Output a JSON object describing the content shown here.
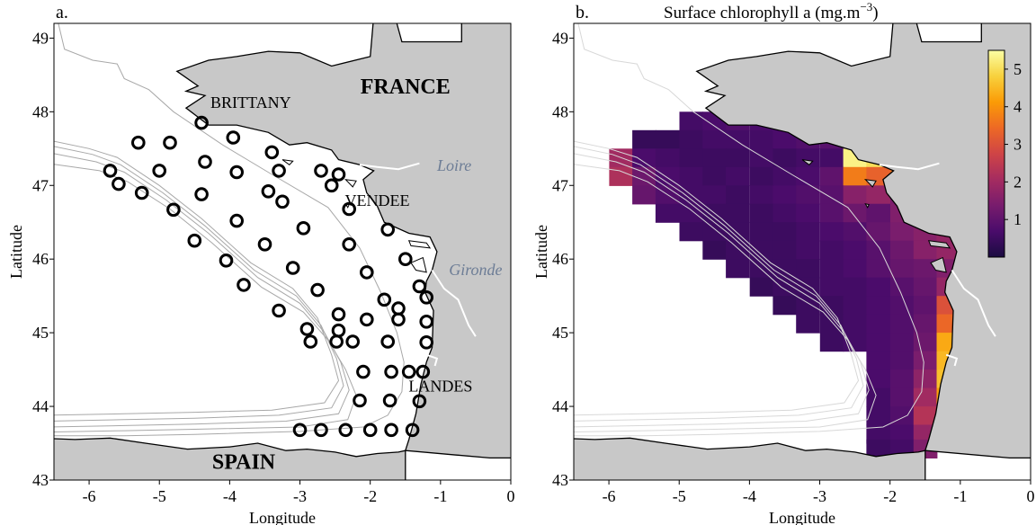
{
  "panels": [
    {
      "id": "a",
      "panel_label": "a.",
      "title": "",
      "xlabel": "Longitude",
      "ylabel": "Latitude",
      "xlim": [
        -6.5,
        0
      ],
      "ylim": [
        43,
        49.2
      ],
      "xticks": [
        "-6",
        "-5",
        "-4",
        "-3",
        "-2",
        "-1",
        "0"
      ],
      "yticks": [
        "43",
        "44",
        "45",
        "46",
        "47",
        "48",
        "49"
      ],
      "places": [
        {
          "text": "FRANCE",
          "lon": -1.5,
          "lat": 48.25,
          "kind": "country"
        },
        {
          "text": "BRITTANY",
          "lon": -3.7,
          "lat": 48.05,
          "kind": "region"
        },
        {
          "text": "VENDEE",
          "lon": -1.9,
          "lat": 46.72,
          "kind": "region"
        },
        {
          "text": "LANDES",
          "lon": -1.0,
          "lat": 44.2,
          "kind": "region"
        },
        {
          "text": "SPAIN",
          "lon": -3.8,
          "lat": 43.15,
          "kind": "country"
        },
        {
          "text": "Loire",
          "lon": -1.05,
          "lat": 47.2,
          "kind": "river"
        },
        {
          "text": "Gironde",
          "lon": -0.88,
          "lat": 45.78,
          "kind": "river"
        }
      ],
      "stations": [
        [
          -4.4,
          47.85
        ],
        [
          -3.95,
          47.65
        ],
        [
          -5.3,
          47.58
        ],
        [
          -4.85,
          47.58
        ],
        [
          -3.4,
          47.45
        ],
        [
          -4.35,
          47.32
        ],
        [
          -2.7,
          47.2
        ],
        [
          -2.45,
          47.15
        ],
        [
          -5.7,
          47.2
        ],
        [
          -5.0,
          47.2
        ],
        [
          -3.9,
          47.18
        ],
        [
          -3.3,
          47.2
        ],
        [
          -5.58,
          47.02
        ],
        [
          -2.55,
          47.0
        ],
        [
          -5.25,
          46.9
        ],
        [
          -4.4,
          46.88
        ],
        [
          -3.45,
          46.92
        ],
        [
          -3.25,
          46.78
        ],
        [
          -2.3,
          46.68
        ],
        [
          -4.8,
          46.67
        ],
        [
          -3.9,
          46.52
        ],
        [
          -2.95,
          46.42
        ],
        [
          -1.75,
          46.4
        ],
        [
          -4.5,
          46.25
        ],
        [
          -3.5,
          46.2
        ],
        [
          -2.3,
          46.2
        ],
        [
          -1.5,
          46.0
        ],
        [
          -4.05,
          45.98
        ],
        [
          -3.1,
          45.88
        ],
        [
          -2.05,
          45.82
        ],
        [
          -1.8,
          45.45
        ],
        [
          -1.3,
          45.63
        ],
        [
          -3.8,
          45.65
        ],
        [
          -2.75,
          45.58
        ],
        [
          -1.6,
          45.33
        ],
        [
          -1.2,
          45.48
        ],
        [
          -3.3,
          45.3
        ],
        [
          -2.45,
          45.25
        ],
        [
          -2.05,
          45.18
        ],
        [
          -1.6,
          45.18
        ],
        [
          -1.2,
          45.15
        ],
        [
          -2.9,
          45.05
        ],
        [
          -2.45,
          45.03
        ],
        [
          -2.85,
          44.88
        ],
        [
          -2.48,
          44.88
        ],
        [
          -2.25,
          44.88
        ],
        [
          -1.75,
          44.88
        ],
        [
          -1.2,
          44.87
        ],
        [
          -2.1,
          44.47
        ],
        [
          -1.7,
          44.47
        ],
        [
          -1.45,
          44.47
        ],
        [
          -1.25,
          44.47
        ],
        [
          -2.15,
          44.08
        ],
        [
          -1.72,
          44.08
        ],
        [
          -1.3,
          44.07
        ],
        [
          -3.0,
          43.68
        ],
        [
          -2.7,
          43.68
        ],
        [
          -2.35,
          43.68
        ],
        [
          -2.0,
          43.68
        ],
        [
          -1.7,
          43.68
        ],
        [
          -1.4,
          43.68
        ]
      ]
    },
    {
      "id": "b",
      "panel_label": "b.",
      "title": "Surface chlorophyll a (mg.m",
      "title_sup": "−3",
      "title_end": ")",
      "xlabel": "Longitude",
      "ylabel": "Latitude",
      "xlim": [
        -6.5,
        0
      ],
      "ylim": [
        43,
        49.2
      ],
      "xticks": [
        "-6",
        "-5",
        "-4",
        "-3",
        "-2",
        "-1",
        "0"
      ],
      "yticks": [
        "43",
        "44",
        "45",
        "46",
        "47",
        "48",
        "49"
      ],
      "colorbar": {
        "min": 0,
        "max": 5.5,
        "ticks": [
          "1",
          "2",
          "3",
          "4",
          "5"
        ],
        "colors": [
          "#1b0c41",
          "#4a0c6b",
          "#781c6d",
          "#a52c60",
          "#cf4446",
          "#ed6925",
          "#fb9b06",
          "#f7d13d",
          "#fcffa4"
        ]
      }
    }
  ],
  "chart_data": {
    "type": "heatmap",
    "title": "Surface chlorophyll a (mg.m−3)",
    "xlabel": "Longitude",
    "ylabel": "Latitude",
    "xlim": [
      -6.5,
      0
    ],
    "ylim": [
      43,
      49.2
    ],
    "cell_size_deg": [
      0.333,
      0.25
    ],
    "note_unit": "mg.m−3",
    "rows": [
      {
        "lat": 47.875,
        "cells": [
          [
            -4.83,
            0.6
          ],
          [
            -4.5,
            0.7
          ],
          [
            -4.17,
            0.8
          ],
          [
            -3.83,
            0.7
          ],
          [
            -3.5,
            0.7
          ]
        ]
      },
      {
        "lat": 47.625,
        "cells": [
          [
            -5.5,
            0.4
          ],
          [
            -5.17,
            0.4
          ],
          [
            -4.83,
            0.5
          ],
          [
            -4.5,
            0.6
          ],
          [
            -4.17,
            0.6
          ],
          [
            -3.83,
            0.6
          ],
          [
            -3.5,
            0.7
          ],
          [
            -3.17,
            0.8
          ],
          [
            -2.83,
            0.9
          ],
          [
            -2.5,
            0.8
          ],
          [
            -2.17,
            0.8
          ]
        ]
      },
      {
        "lat": 47.375,
        "cells": [
          [
            -5.83,
            2.0
          ],
          [
            -5.5,
            0.7
          ],
          [
            -5.17,
            0.6
          ],
          [
            -4.83,
            0.5
          ],
          [
            -4.5,
            0.5
          ],
          [
            -4.17,
            0.5
          ],
          [
            -3.83,
            0.6
          ],
          [
            -3.5,
            0.5
          ],
          [
            -3.17,
            0.6
          ],
          [
            -2.83,
            0.6
          ],
          [
            -2.5,
            5.3
          ],
          [
            -2.17,
            5.0
          ]
        ]
      },
      {
        "lat": 47.125,
        "cells": [
          [
            -5.83,
            2.2
          ],
          [
            -5.5,
            1.2
          ],
          [
            -5.17,
            0.7
          ],
          [
            -4.83,
            0.6
          ],
          [
            -4.5,
            0.5
          ],
          [
            -4.17,
            0.6
          ],
          [
            -3.83,
            0.5
          ],
          [
            -3.5,
            0.6
          ],
          [
            -3.17,
            0.7
          ],
          [
            -2.83,
            1.0
          ],
          [
            -2.5,
            3.7
          ],
          [
            -2.17,
            3.3
          ],
          [
            -1.83,
            3.6
          ]
        ]
      },
      {
        "lat": 46.875,
        "cells": [
          [
            -5.5,
            1.1
          ],
          [
            -5.17,
            0.8
          ],
          [
            -4.83,
            0.6
          ],
          [
            -4.5,
            0.6
          ],
          [
            -4.17,
            0.5
          ],
          [
            -3.83,
            0.6
          ],
          [
            -3.5,
            0.7
          ],
          [
            -3.17,
            0.8
          ],
          [
            -2.83,
            0.9
          ],
          [
            -2.5,
            1.6
          ],
          [
            -2.17,
            1.8
          ],
          [
            -1.83,
            1.4
          ]
        ]
      },
      {
        "lat": 46.625,
        "cells": [
          [
            -5.17,
            0.6
          ],
          [
            -4.83,
            0.6
          ],
          [
            -4.5,
            0.5
          ],
          [
            -4.17,
            0.5
          ],
          [
            -3.83,
            0.5
          ],
          [
            -3.5,
            0.6
          ],
          [
            -3.17,
            0.7
          ],
          [
            -2.83,
            0.9
          ],
          [
            -2.5,
            1.2
          ],
          [
            -2.17,
            1.0
          ],
          [
            -1.83,
            1.5
          ],
          [
            -1.5,
            2.0
          ]
        ]
      },
      {
        "lat": 46.375,
        "cells": [
          [
            -4.83,
            0.5
          ],
          [
            -4.5,
            0.5
          ],
          [
            -4.17,
            0.5
          ],
          [
            -3.83,
            0.5
          ],
          [
            -3.5,
            0.5
          ],
          [
            -3.17,
            0.6
          ],
          [
            -2.83,
            0.7
          ],
          [
            -2.5,
            0.8
          ],
          [
            -2.17,
            1.1
          ],
          [
            -1.83,
            1.4
          ],
          [
            -1.5,
            1.6
          ],
          [
            -1.17,
            1.8
          ]
        ]
      },
      {
        "lat": 46.125,
        "cells": [
          [
            -4.5,
            0.4
          ],
          [
            -4.17,
            0.5
          ],
          [
            -3.83,
            0.5
          ],
          [
            -3.5,
            0.5
          ],
          [
            -3.17,
            0.6
          ],
          [
            -2.83,
            0.6
          ],
          [
            -2.5,
            0.7
          ],
          [
            -2.17,
            0.9
          ],
          [
            -1.83,
            1.2
          ],
          [
            -1.5,
            1.6
          ],
          [
            -1.17,
            1.8
          ]
        ]
      },
      {
        "lat": 45.875,
        "cells": [
          [
            -4.17,
            0.5
          ],
          [
            -3.83,
            0.5
          ],
          [
            -3.5,
            0.5
          ],
          [
            -3.17,
            0.5
          ],
          [
            -2.83,
            0.6
          ],
          [
            -2.5,
            0.7
          ],
          [
            -2.17,
            0.9
          ],
          [
            -1.83,
            1.1
          ],
          [
            -1.5,
            1.2
          ],
          [
            -1.17,
            1.5
          ]
        ]
      },
      {
        "lat": 45.625,
        "cells": [
          [
            -3.83,
            0.4
          ],
          [
            -3.5,
            0.5
          ],
          [
            -3.17,
            0.5
          ],
          [
            -2.83,
            0.6
          ],
          [
            -2.5,
            0.6
          ],
          [
            -2.17,
            0.7
          ],
          [
            -1.83,
            0.9
          ],
          [
            -1.5,
            1.1
          ],
          [
            -1.17,
            1.8
          ]
        ]
      },
      {
        "lat": 45.375,
        "cells": [
          [
            -3.5,
            0.4
          ],
          [
            -3.17,
            0.5
          ],
          [
            -2.83,
            0.5
          ],
          [
            -2.5,
            0.6
          ],
          [
            -2.17,
            0.7
          ],
          [
            -1.83,
            0.8
          ],
          [
            -1.5,
            1.0
          ],
          [
            -1.17,
            3.0
          ]
        ]
      },
      {
        "lat": 45.125,
        "cells": [
          [
            -3.17,
            0.5
          ],
          [
            -2.83,
            0.5
          ],
          [
            -2.5,
            0.6
          ],
          [
            -2.17,
            0.7
          ],
          [
            -1.83,
            0.8
          ],
          [
            -1.5,
            1.1
          ],
          [
            -1.17,
            3.4
          ]
        ]
      },
      {
        "lat": 44.875,
        "cells": [
          [
            -2.83,
            0.5
          ],
          [
            -2.5,
            0.6
          ],
          [
            -2.17,
            0.7
          ],
          [
            -1.83,
            0.8
          ],
          [
            -1.5,
            1.2
          ],
          [
            -1.17,
            4.3
          ]
        ]
      },
      {
        "lat": 44.625,
        "cells": [
          [
            -2.17,
            0.7
          ],
          [
            -1.83,
            0.8
          ],
          [
            -1.5,
            1.4
          ],
          [
            -1.17,
            4.5
          ]
        ]
      },
      {
        "lat": 44.375,
        "cells": [
          [
            -2.17,
            0.7
          ],
          [
            -1.83,
            0.9
          ],
          [
            -1.5,
            1.7
          ],
          [
            -1.17,
            4.6
          ]
        ]
      },
      {
        "lat": 44.125,
        "cells": [
          [
            -2.17,
            0.6
          ],
          [
            -1.83,
            0.9
          ],
          [
            -1.5,
            2.0
          ],
          [
            -1.17,
            4.2
          ]
        ]
      },
      {
        "lat": 43.875,
        "cells": [
          [
            -2.17,
            0.6
          ],
          [
            -1.83,
            0.8
          ],
          [
            -1.5,
            2.3
          ],
          [
            -1.17,
            4.0
          ]
        ]
      },
      {
        "lat": 43.625,
        "cells": [
          [
            -2.17,
            0.6
          ],
          [
            -1.83,
            0.7
          ],
          [
            -1.5,
            1.8
          ],
          [
            -1.17,
            3.5
          ]
        ]
      },
      {
        "lat": 43.425,
        "cells": [
          [
            -2.17,
            0.5
          ],
          [
            -1.83,
            0.6
          ],
          [
            -1.5,
            1.5
          ]
        ]
      }
    ]
  }
}
